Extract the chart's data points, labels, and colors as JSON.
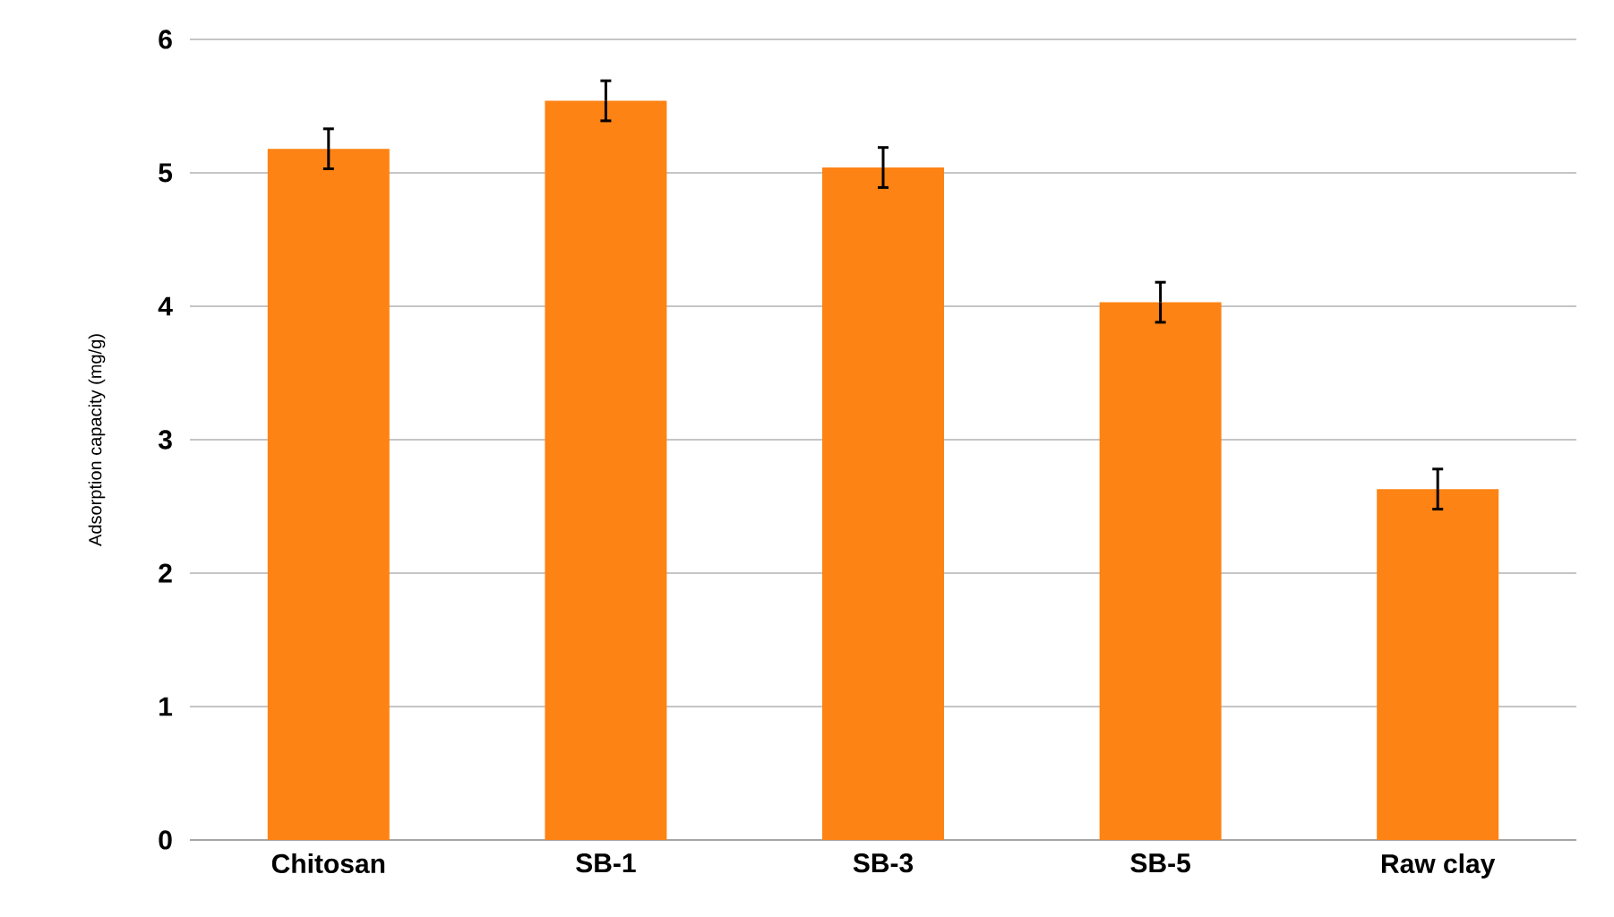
{
  "chart_data": {
    "type": "bar",
    "ylabel": "Adsorption capacity (mg/g)",
    "categories": [
      "Chitosan",
      "SB-1",
      "SB-3",
      "SB-5",
      "Raw clay"
    ],
    "values": [
      5.18,
      5.54,
      5.04,
      4.03,
      2.63
    ],
    "errors": [
      0.15,
      0.15,
      0.15,
      0.15,
      0.15
    ],
    "color": "#fd8314",
    "ylim": [
      0,
      6
    ],
    "yticks": [
      0,
      1,
      2,
      3,
      4,
      5,
      6
    ],
    "grid": "y"
  }
}
